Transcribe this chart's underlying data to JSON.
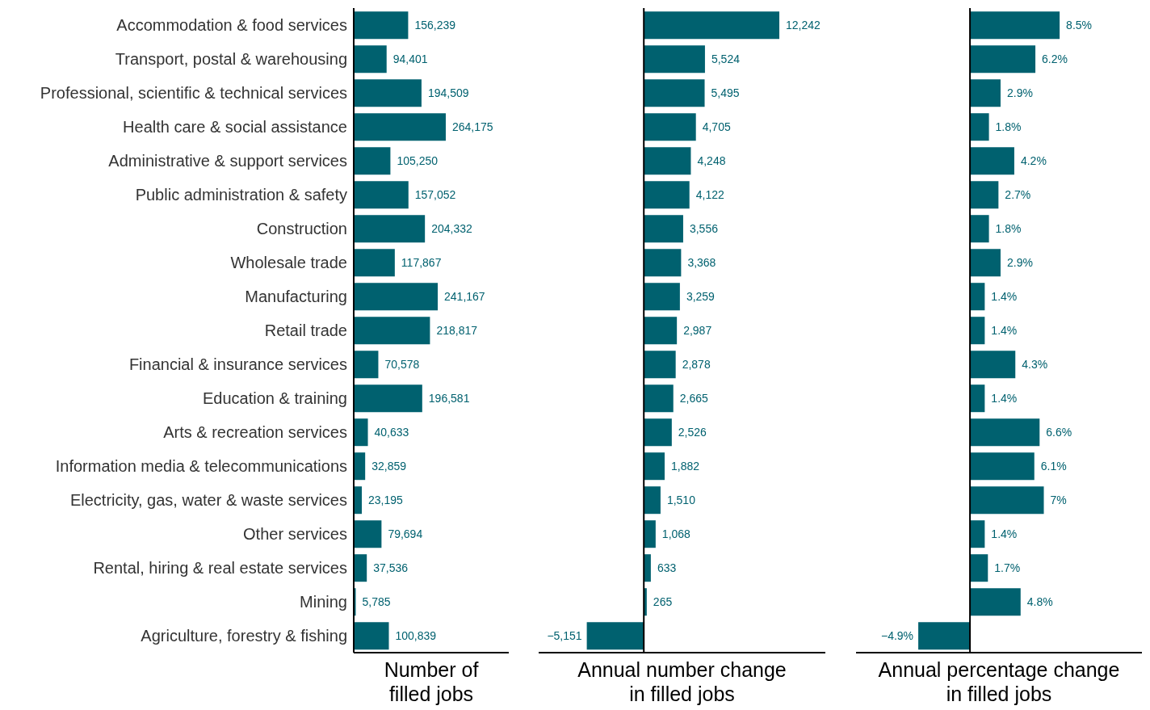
{
  "chart_data": [
    {
      "type": "bar",
      "orientation": "horizontal",
      "xlabel": "Number of filled jobs",
      "categories": [
        "Accommodation & food services",
        "Transport, postal & warehousing",
        "Professional, scientific & technical services",
        "Health care & social assistance",
        "Administrative & support services",
        "Public administration & safety",
        "Construction",
        "Wholesale trade",
        "Manufacturing",
        "Retail trade",
        "Financial & insurance services",
        "Education & training",
        "Arts & recreation services",
        "Information media & telecommunications",
        "Electricity, gas, water & waste services",
        "Other services",
        "Rental, hiring & real estate services",
        "Mining",
        "Agriculture, forestry & fishing"
      ],
      "values": [
        156239,
        94401,
        194509,
        264175,
        105250,
        157052,
        204332,
        117867,
        241167,
        218817,
        70578,
        196581,
        40633,
        32859,
        23195,
        79694,
        37536,
        5785,
        100839
      ],
      "value_labels": [
        "156,239",
        "94,401",
        "194,509",
        "264,175",
        "105,250",
        "157,052",
        "204,332",
        "117,867",
        "241,167",
        "218,817",
        "70,578",
        "196,581",
        "40,633",
        "32,859",
        "23,195",
        "79,694",
        "37,536",
        "5,785",
        "100,839"
      ],
      "color": "#00616f",
      "xlim": [
        0,
        445000
      ],
      "tick_labels": "y"
    },
    {
      "type": "bar",
      "orientation": "horizontal",
      "xlabel": "Annual number change in filled jobs",
      "categories": [
        null,
        null,
        null,
        null,
        null,
        null,
        null,
        null,
        null,
        null,
        null,
        null,
        null,
        null,
        null,
        null,
        null,
        null,
        null
      ],
      "values": [
        12242,
        5524,
        5495,
        4705,
        4248,
        4122,
        3556,
        3368,
        3259,
        2987,
        2878,
        2665,
        2526,
        1882,
        1510,
        1068,
        633,
        265,
        -5151
      ],
      "value_labels": [
        "12,242",
        "5,524",
        "5,495",
        "4,705",
        "4,248",
        "4,122",
        "3,556",
        "3,368",
        "3,259",
        "2,987",
        "2,878",
        "2,665",
        "2,526",
        "1,882",
        "1,510",
        "1,068",
        "633",
        "265",
        "−5,151"
      ],
      "color": "#00616f",
      "xlim": [
        -9500,
        16400
      ],
      "tick_labels": false,
      "ref_lines": [
        {
          "axis": "x",
          "value": 0,
          "color": "#000000"
        }
      ]
    },
    {
      "type": "bar",
      "orientation": "horizontal",
      "xlabel": "Annual percentage change in filled jobs",
      "categories": [
        null,
        null,
        null,
        null,
        null,
        null,
        null,
        null,
        null,
        null,
        null,
        null,
        null,
        null,
        null,
        null,
        null,
        null,
        null
      ],
      "values": [
        8.5,
        6.2,
        2.9,
        1.8,
        4.2,
        2.7,
        1.8,
        2.9,
        1.4,
        1.4,
        4.3,
        1.4,
        6.6,
        6.1,
        7,
        1.4,
        1.7,
        4.8,
        -4.9
      ],
      "value_labels": [
        "8.5%",
        "6.2%",
        "2.9%",
        "1.8%",
        "4.2%",
        "2.7%",
        "1.8%",
        "2.9%",
        "1.4%",
        "1.4%",
        "4.3%",
        "1.4%",
        "6.6%",
        "6.1%",
        "7%",
        "1.4%",
        "1.7%",
        "4.8%",
        "−4.9%"
      ],
      "color": "#00616f",
      "xlim": [
        -10.8,
        16.3
      ],
      "tick_labels": false,
      "ref_lines": [
        {
          "axis": "x",
          "value": 0,
          "color": "#000000"
        }
      ]
    }
  ]
}
